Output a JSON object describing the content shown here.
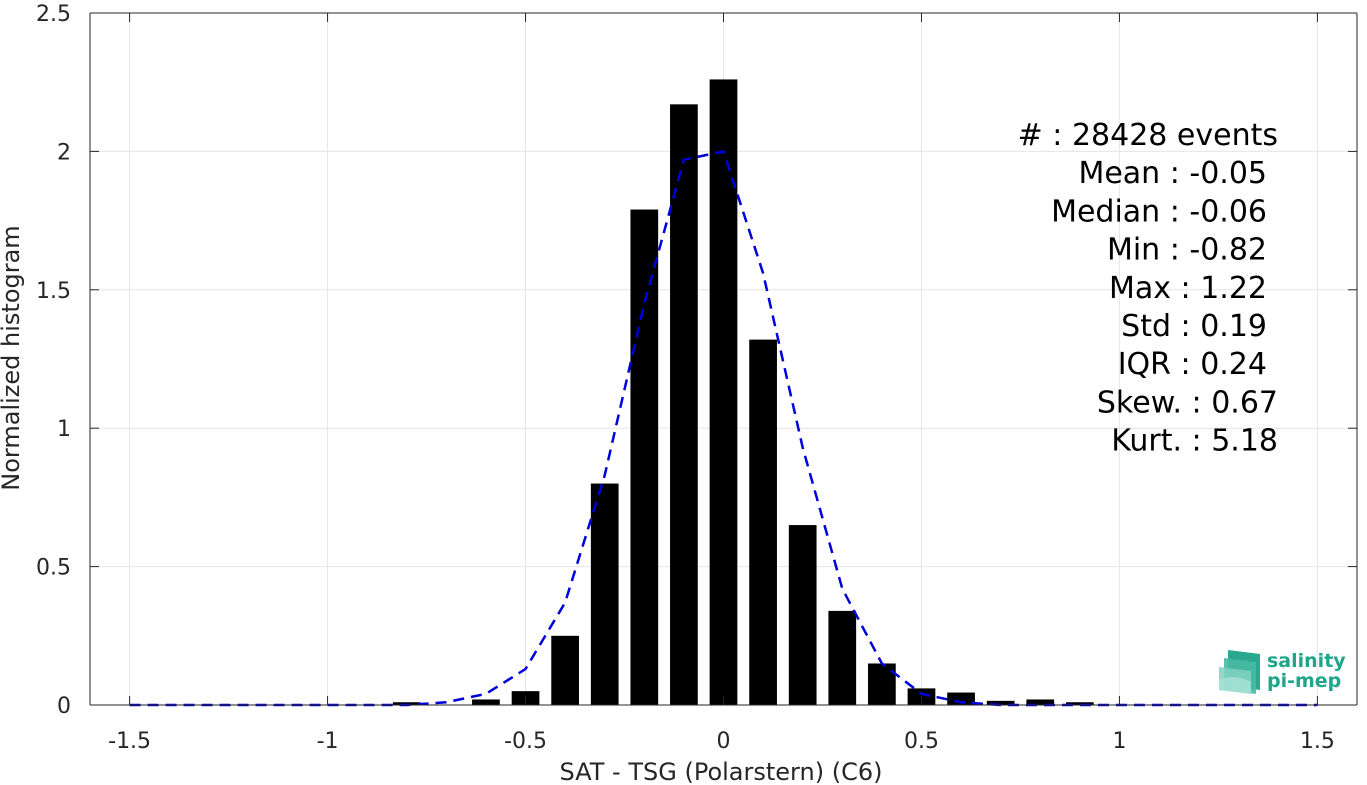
{
  "chart_data": {
    "type": "bar",
    "xlabel": "SAT - TSG (Polarstern) (C6)",
    "ylabel": "Normalized histogram",
    "xlim": [
      -1.6,
      1.6
    ],
    "ylim": [
      0,
      2.5
    ],
    "x_ticks": [
      -1.5,
      -1,
      -0.5,
      0,
      0.5,
      1,
      1.5
    ],
    "x_tick_labels": [
      "-1.5",
      "-1",
      "-0.5",
      "0",
      "0.5",
      "1",
      "1.5"
    ],
    "y_ticks": [
      0,
      0.5,
      1,
      1.5,
      2,
      2.5
    ],
    "y_tick_labels": [
      "0",
      "0.5",
      "1",
      "1.5",
      "2",
      "2.5"
    ],
    "grid": true,
    "bar_width": 0.07,
    "histogram": {
      "x": [
        -0.8,
        -0.6,
        -0.5,
        -0.4,
        -0.3,
        -0.2,
        -0.1,
        0.0,
        0.1,
        0.2,
        0.3,
        0.4,
        0.5,
        0.6,
        0.7,
        0.8,
        0.9
      ],
      "values": [
        0.01,
        0.02,
        0.05,
        0.25,
        0.8,
        1.79,
        2.17,
        2.26,
        1.32,
        0.65,
        0.34,
        0.15,
        0.06,
        0.045,
        0.015,
        0.02,
        0.01
      ],
      "color": "#000000"
    },
    "fit_curve": {
      "style": "dashed",
      "color": "#0000dd",
      "x": [
        -1.5,
        -1.4,
        -1.3,
        -1.2,
        -1.1,
        -1.0,
        -0.9,
        -0.8,
        -0.7,
        -0.6,
        -0.5,
        -0.4,
        -0.3,
        -0.2,
        -0.1,
        0.0,
        0.1,
        0.2,
        0.3,
        0.4,
        0.5,
        0.6,
        0.7,
        0.8,
        0.9,
        1.0,
        1.1,
        1.2,
        1.3,
        1.4,
        1.5
      ],
      "y": [
        0,
        0,
        0,
        0,
        0,
        0,
        0,
        0,
        0.01,
        0.04,
        0.13,
        0.37,
        0.83,
        1.45,
        1.97,
        2.0,
        1.56,
        0.93,
        0.42,
        0.15,
        0.04,
        0.01,
        0,
        0,
        0,
        0,
        0,
        0,
        0,
        0,
        0
      ]
    },
    "stats": [
      "#  : 28428 events",
      "Mean : -0.05",
      "Median : -0.06",
      "Min : -0.82",
      "Max : 1.22",
      "Std : 0.19",
      "IQR : 0.24",
      "Skew. : 0.67",
      "Kurt. : 5.18"
    ]
  },
  "logo": {
    "line1": "salinity",
    "line2": "pi-mep",
    "color": "#1fa58a"
  }
}
